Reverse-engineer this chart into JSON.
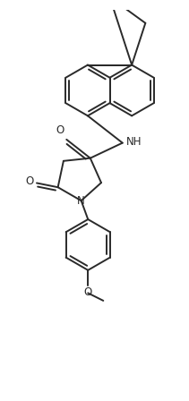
{
  "line_color": "#2a2a2a",
  "bg_color": "#ffffff",
  "lw": 1.4,
  "fs": 8.5,
  "figsize": [
    2.11,
    4.48
  ],
  "dpi": 100,
  "xlim": [
    -1.1,
    1.1
  ],
  "ylim": [
    -2.2,
    2.3
  ]
}
